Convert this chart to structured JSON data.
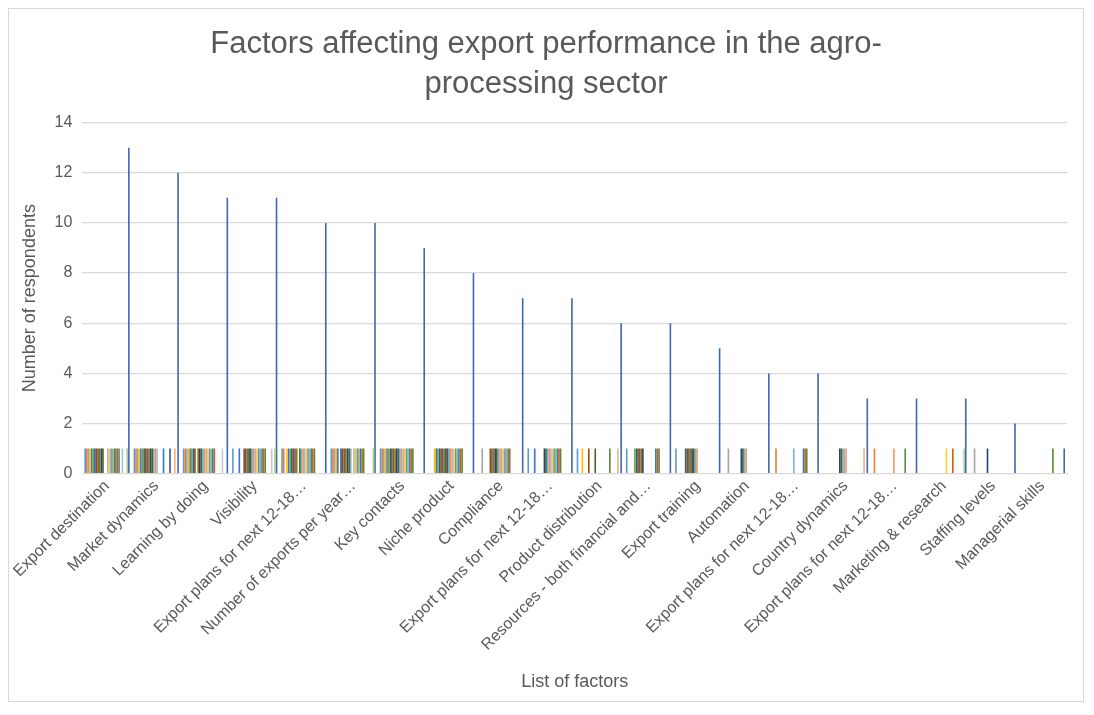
{
  "chart_data": {
    "type": "bar",
    "title": "Factors affecting export performance in the agro-processing sector",
    "xlabel": "List of factors",
    "ylabel": "Number of respondents",
    "categories": [
      "Export destination",
      "Market dynamics",
      "Learning by doing",
      "Visibility",
      "Export plans for next 12-18…",
      "Number of exports per year…",
      "Key contacts",
      "Niche product",
      "Compliance",
      "Export plans for next 12-18…",
      "Product distribution",
      "Resources - both financial and…",
      "Export training",
      "Automation",
      "Export plans for next 12-18…",
      "Country dynamics",
      "Export plans for next 12-18…",
      "Marketing & research",
      "Staffing levels",
      "Managerial skills"
    ],
    "ylim": [
      0,
      14
    ],
    "yticks": [
      0,
      2,
      4,
      6,
      8,
      10,
      12,
      14
    ],
    "grid": "y",
    "legend": false,
    "series": [
      {
        "color": "#5b9bd5",
        "values": [
          1,
          1,
          1,
          1,
          1,
          1,
          1,
          null,
          null,
          1,
          1,
          1,
          1,
          null,
          null,
          null,
          null,
          null,
          null,
          null
        ]
      },
      {
        "color": "#ed7d31",
        "values": [
          1,
          1,
          1,
          null,
          1,
          1,
          1,
          null,
          null,
          null,
          null,
          null,
          null,
          null,
          1,
          null,
          1,
          null,
          null,
          null
        ]
      },
      {
        "color": "#a5a5a5",
        "values": [
          1,
          1,
          1,
          null,
          null,
          1,
          1,
          null,
          1,
          null,
          null,
          null,
          null,
          1,
          null,
          null,
          null,
          null,
          1,
          null
        ]
      },
      {
        "color": "#ffc000",
        "values": [
          1,
          1,
          1,
          null,
          1,
          1,
          1,
          1,
          null,
          null,
          1,
          null,
          null,
          null,
          null,
          null,
          null,
          null,
          null,
          null
        ]
      },
      {
        "color": "#4472c4",
        "values": [
          1,
          1,
          1,
          1,
          1,
          1,
          1,
          1,
          null,
          1,
          null,
          null,
          null,
          null,
          null,
          null,
          null,
          null,
          null,
          null
        ]
      },
      {
        "color": "#70ad47",
        "values": [
          1,
          1,
          1,
          null,
          1,
          null,
          1,
          1,
          null,
          null,
          null,
          1,
          null,
          null,
          null,
          null,
          null,
          null,
          null,
          null
        ]
      },
      {
        "color": "#255e91",
        "values": [
          1,
          1,
          1,
          null,
          1,
          1,
          1,
          1,
          null,
          null,
          null,
          1,
          1,
          null,
          null,
          null,
          null,
          null,
          null,
          null
        ]
      },
      {
        "color": "#9e480e",
        "values": [
          1,
          1,
          1,
          1,
          1,
          1,
          1,
          1,
          1,
          null,
          1,
          1,
          1,
          null,
          null,
          null,
          null,
          null,
          null,
          null
        ]
      },
      {
        "color": "#636363",
        "values": [
          1,
          1,
          null,
          1,
          1,
          1,
          1,
          1,
          1,
          null,
          null,
          1,
          1,
          null,
          null,
          null,
          null,
          null,
          null,
          null
        ]
      },
      {
        "color": "#997300",
        "values": [
          1,
          1,
          1,
          1,
          1,
          1,
          1,
          1,
          1,
          null,
          null,
          1,
          1,
          null,
          null,
          null,
          null,
          null,
          null,
          null
        ]
      },
      {
        "color": "#264478",
        "values": [
          1,
          1,
          1,
          1,
          null,
          1,
          1,
          1,
          1,
          1,
          null,
          1,
          1,
          1,
          null,
          1,
          null,
          null,
          1,
          null
        ]
      },
      {
        "color": "#43682b",
        "values": [
          1,
          1,
          1,
          1,
          1,
          1,
          1,
          1,
          1,
          1,
          1,
          null,
          1,
          1,
          null,
          1,
          null,
          null,
          null,
          null
        ]
      },
      {
        "color": "#7cafdd",
        "values": [
          null,
          1,
          1,
          1,
          1,
          1,
          1,
          1,
          1,
          1,
          null,
          null,
          1,
          1,
          1,
          1,
          null,
          null,
          null,
          null
        ]
      },
      {
        "color": "#f1975a",
        "values": [
          null,
          1,
          1,
          1,
          1,
          null,
          1,
          1,
          1,
          1,
          null,
          null,
          1,
          1,
          null,
          1,
          1,
          null,
          null,
          null
        ]
      },
      {
        "color": "#b7b7b7",
        "values": [
          1,
          1,
          1,
          1,
          1,
          1,
          1,
          1,
          1,
          1,
          null,
          null,
          null,
          null,
          null,
          1,
          null,
          null,
          null,
          null
        ]
      },
      {
        "color": "#ffcd33",
        "values": [
          1,
          null,
          1,
          1,
          1,
          1,
          1,
          1,
          1,
          1,
          null,
          null,
          null,
          null,
          null,
          null,
          null,
          1,
          null,
          null
        ]
      },
      {
        "color": "#698ed0",
        "values": [
          1,
          null,
          1,
          1,
          1,
          1,
          1,
          1,
          1,
          1,
          null,
          null,
          null,
          null,
          null,
          null,
          null,
          null,
          null,
          null
        ]
      },
      {
        "color": "#8cc168",
        "values": [
          1,
          null,
          1,
          1,
          1,
          1,
          1,
          1,
          1,
          1,
          null,
          null,
          null,
          null,
          null,
          null,
          null,
          null,
          null,
          null
        ]
      },
      {
        "color": "#327dc2",
        "values": [
          1,
          1,
          1,
          1,
          1,
          1,
          1,
          1,
          1,
          1,
          null,
          1,
          null,
          null,
          1,
          null,
          null,
          null,
          null,
          null
        ]
      },
      {
        "color": "#d26012",
        "values": [
          1,
          null,
          1,
          1,
          1,
          1,
          1,
          1,
          1,
          1,
          null,
          1,
          null,
          null,
          1,
          null,
          null,
          1,
          null,
          null
        ]
      },
      {
        "color": "#5a8a39",
        "values": [
          1,
          null,
          null,
          1,
          1,
          1,
          1,
          1,
          null,
          1,
          1,
          1,
          null,
          null,
          1,
          null,
          1,
          null,
          null,
          1
        ]
      },
      {
        "color": "#848484",
        "values": [
          1,
          null,
          null,
          null,
          null,
          null,
          null,
          null,
          null,
          null,
          null,
          null,
          null,
          null,
          null,
          null,
          null,
          null,
          null,
          null
        ]
      },
      {
        "color": "#335aa1",
        "values": [
          null,
          1,
          null,
          null,
          null,
          null,
          null,
          null,
          null,
          null,
          null,
          null,
          null,
          null,
          null,
          null,
          null,
          null,
          null,
          null
        ]
      },
      {
        "color": "#9dc3e6",
        "values": [
          1,
          null,
          null,
          null,
          null,
          null,
          null,
          null,
          null,
          null,
          null,
          null,
          null,
          null,
          null,
          null,
          null,
          null,
          null,
          null
        ]
      },
      {
        "color": "#c9c9c9",
        "values": [
          null,
          null,
          1,
          1,
          null,
          null,
          null,
          null,
          null,
          null,
          null,
          null,
          null,
          null,
          null,
          null,
          null,
          null,
          null,
          null
        ]
      },
      {
        "color": "#f4b183",
        "values": [
          null,
          1,
          null,
          null,
          null,
          null,
          null,
          null,
          null,
          null,
          1,
          null,
          null,
          null,
          null,
          1,
          null,
          null,
          null,
          null
        ]
      },
      {
        "color": "#a9d18e",
        "values": [
          1,
          null,
          null,
          1,
          null,
          1,
          null,
          null,
          null,
          null,
          null,
          null,
          null,
          null,
          null,
          null,
          null,
          1,
          null,
          null
        ]
      },
      {
        "color": "#4068b2",
        "values": [
          13,
          12,
          11,
          11,
          10,
          10,
          9,
          8,
          7,
          7,
          6,
          6,
          5,
          4,
          4,
          3,
          3,
          3,
          2,
          1
        ]
      }
    ]
  }
}
